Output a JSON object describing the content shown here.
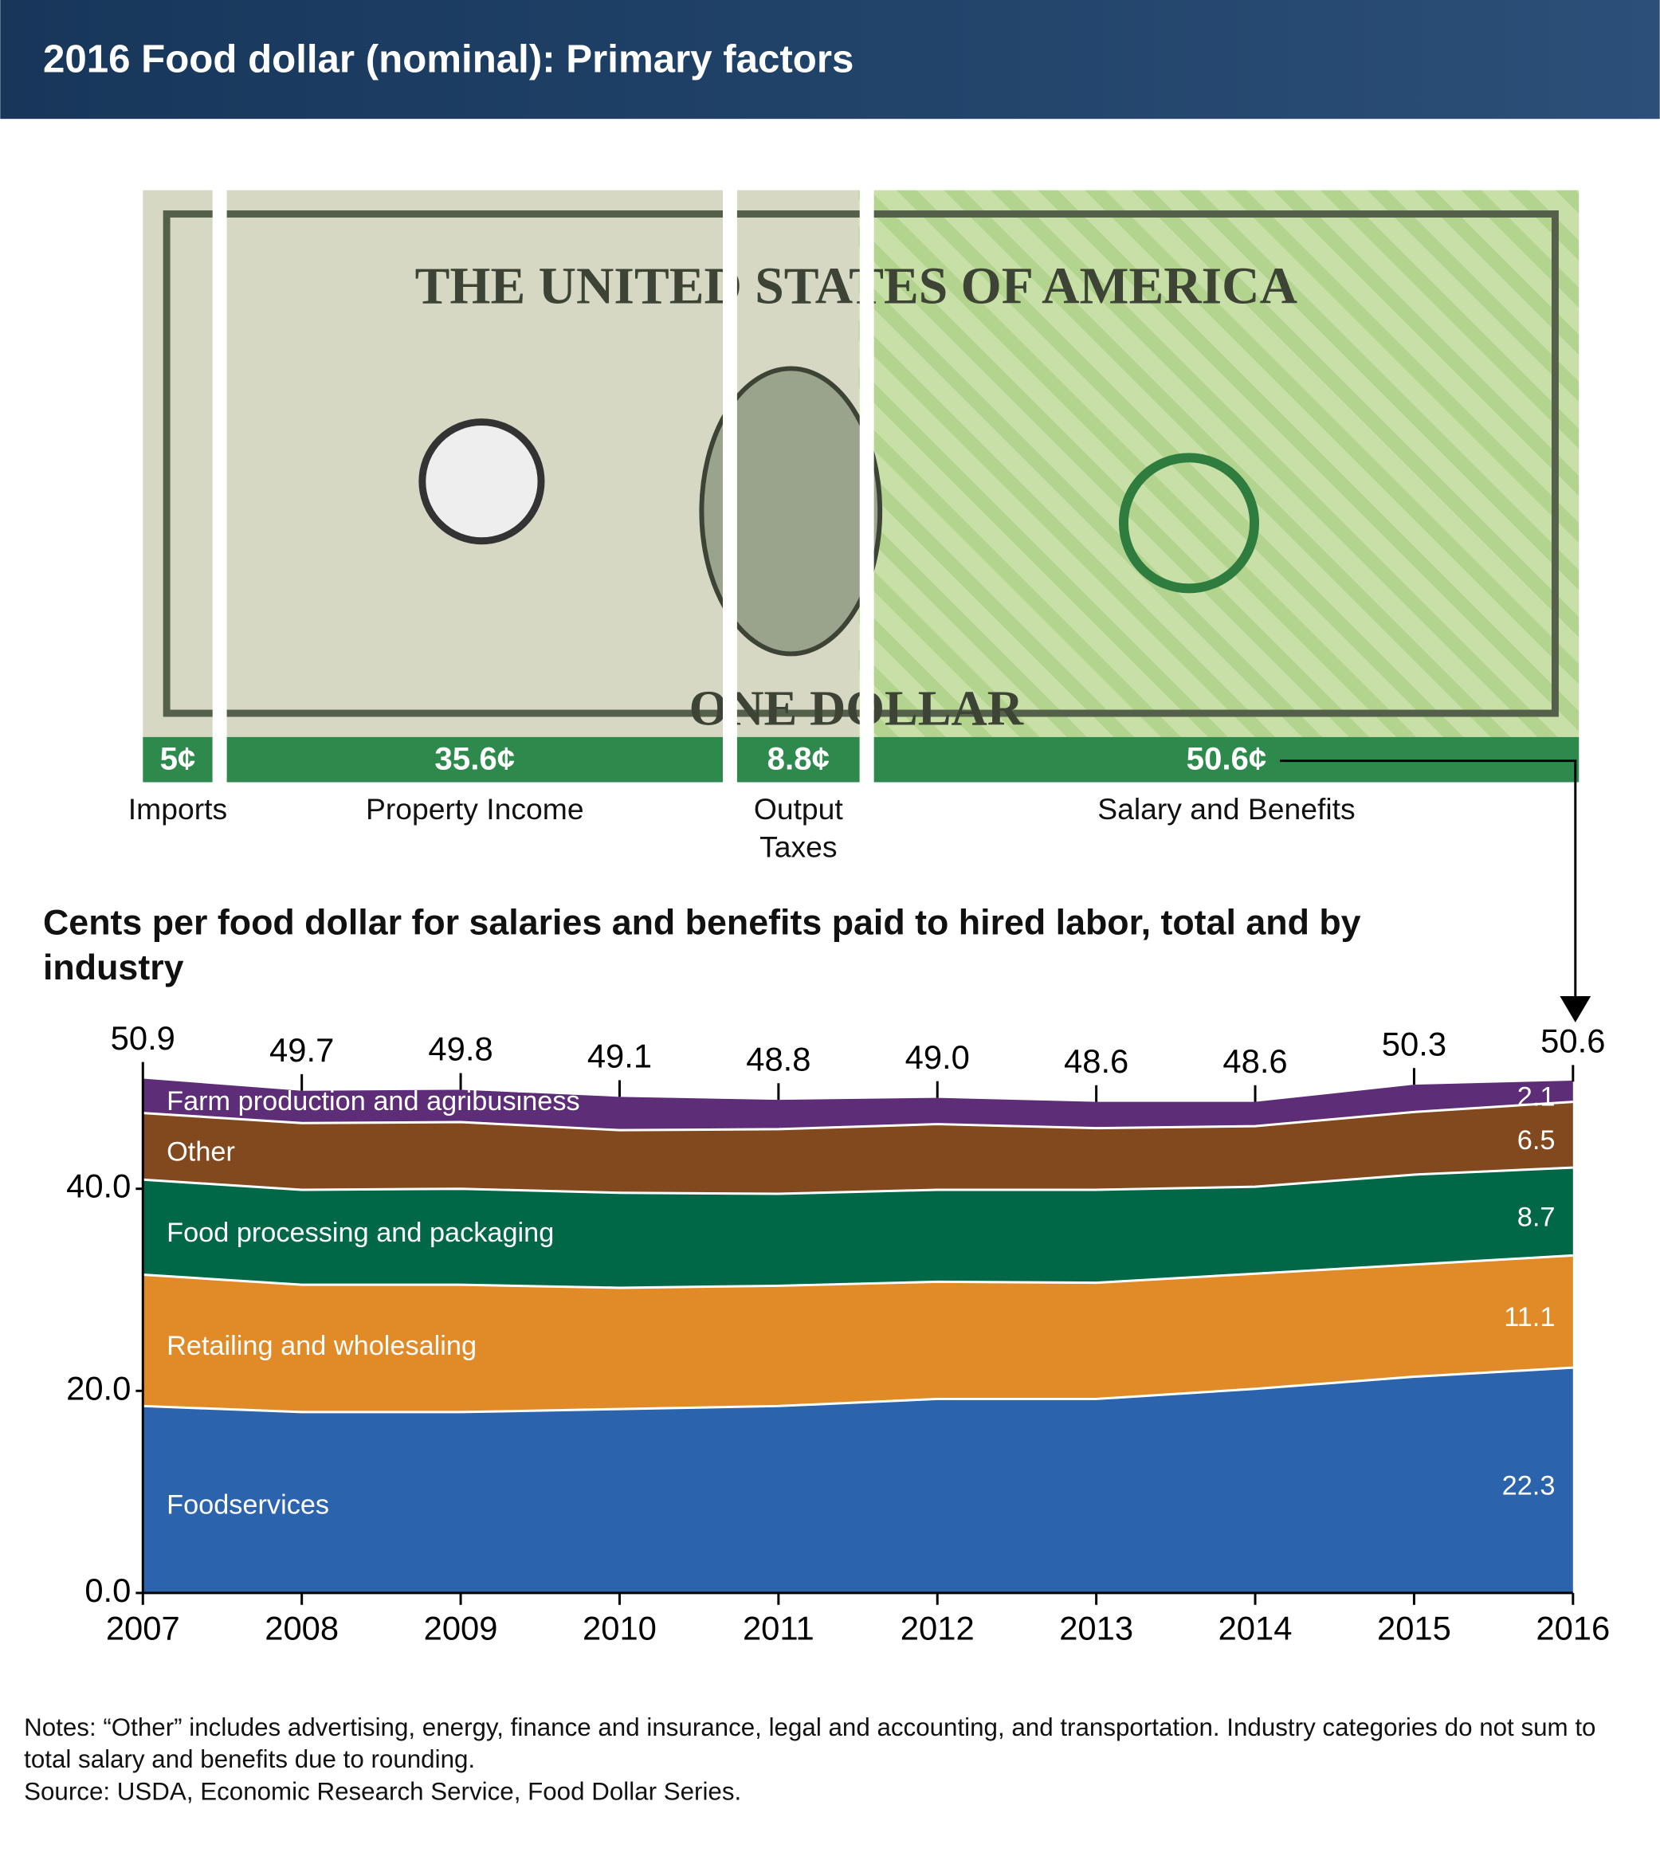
{
  "title": "2016 Food dollar (nominal): Primary factors",
  "chart_data": [
    {
      "type": "dollar",
      "categories": [
        "Imports",
        "Property Income",
        "Output Taxes",
        "Salary and Benefits"
      ],
      "values": [
        5,
        35.6,
        8.8,
        50.6
      ],
      "value_labels": [
        "5¢",
        "35.6¢",
        "8.8¢",
        "50.6¢"
      ],
      "color": "#2e8a4c"
    },
    {
      "type": "stacked-area",
      "title": "Cents per food dollar for salaries and benefits paid to hired labor, total and by industry",
      "x": [
        2007,
        2008,
        2009,
        2010,
        2011,
        2012,
        2013,
        2014,
        2015,
        2016
      ],
      "series": [
        {
          "name": "Foodservices",
          "color": "#2b63ad",
          "values": [
            18.5,
            17.9,
            17.9,
            18.2,
            18.5,
            19.2,
            19.2,
            20.2,
            21.4,
            22.3
          ]
        },
        {
          "name": "Retailing and wholesaling",
          "color": "#e08a28",
          "values": [
            13.0,
            12.6,
            12.6,
            12.0,
            11.9,
            11.6,
            11.5,
            11.4,
            11.1,
            11.1
          ]
        },
        {
          "name": "Food processing and packaging",
          "color": "#006847",
          "values": [
            9.4,
            9.4,
            9.5,
            9.4,
            9.1,
            9.1,
            9.2,
            8.6,
            8.9,
            8.7
          ]
        },
        {
          "name": "Other",
          "color": "#82491f",
          "values": [
            6.6,
            6.6,
            6.6,
            6.2,
            6.4,
            6.5,
            6.1,
            6.0,
            6.2,
            6.5
          ]
        },
        {
          "name": "Farm production and agribusiness",
          "color": "#5e2d78",
          "values": [
            3.4,
            3.2,
            3.2,
            3.3,
            2.9,
            2.6,
            2.6,
            2.4,
            2.7,
            2.1
          ]
        }
      ],
      "totals": {
        "values": [
          50.9,
          49.7,
          49.8,
          49.1,
          48.8,
          49.0,
          48.6,
          48.6,
          50.3,
          50.6
        ],
        "value_labels": [
          "50.9",
          "49.7",
          "49.8",
          "49.1",
          "48.8",
          "49.0",
          "48.6",
          "48.6",
          "50.3",
          "50.6"
        ]
      },
      "xlim": [
        2007,
        2016
      ],
      "ylim": [
        0,
        50.9
      ],
      "yticks": [
        {
          "value": 0,
          "label": "0.0"
        },
        {
          "value": 20,
          "label": "20.0"
        },
        {
          "value": 40,
          "label": "40.0"
        }
      ]
    }
  ],
  "notes": "Notes: “Other” includes advertising, energy, finance and insurance, legal and accounting, and transportation. Industry categories do not sum to total salary and benefits due to rounding.",
  "source": "Source: USDA, Economic Research Service, Food Dollar Series."
}
